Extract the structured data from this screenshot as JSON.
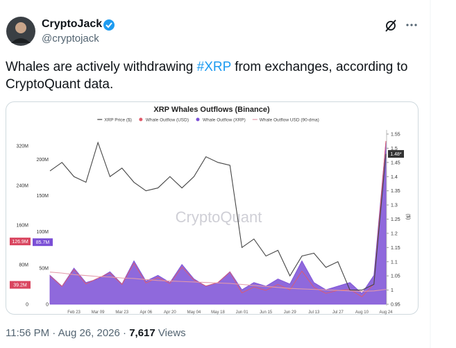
{
  "post": {
    "author": "CryptoJack",
    "handle": "@cryptojack",
    "text_before": "Whales are actively withdrawing ",
    "hashtag": "#XRP",
    "text_after": " from exchanges, according to CryptoQuant data.",
    "time": "11:56 PM",
    "separator": "·",
    "date": "Aug 26, 2026",
    "views": "7,617",
    "views_label": "Views"
  },
  "chart_data": {
    "type": "line",
    "title": "XRP Whales Outflows (Binance)",
    "watermark": "CryptoQuant",
    "y2_label": "($)",
    "categories": [
      null,
      null,
      "Feb 23",
      null,
      "Mar 09",
      null,
      "Mar 23",
      null,
      "Apr 06",
      null,
      "Apr 20",
      null,
      "May 04",
      null,
      "May 18",
      null,
      "Jun 01",
      null,
      "Jun 15",
      null,
      "Jun 29",
      null,
      "Jul 13",
      null,
      "Jul 27",
      null,
      "Aug 10",
      null,
      "Aug 24"
    ],
    "series": [
      {
        "name": "XRP Price ($)",
        "color": "#444444",
        "axis": "y2",
        "style": "line",
        "values": [
          1.42,
          1.45,
          1.4,
          1.38,
          1.52,
          1.4,
          1.43,
          1.38,
          1.35,
          1.36,
          1.4,
          1.36,
          1.4,
          1.47,
          1.45,
          1.44,
          1.15,
          1.18,
          1.12,
          1.14,
          1.05,
          1.12,
          1.13,
          1.08,
          1.1,
          1.0,
          1.0,
          1.02,
          1.48
        ]
      },
      {
        "name": "Whale Outflow (USD)",
        "color": "#e05a6a",
        "axis": "y",
        "style": "dot-line",
        "values": [
          57,
          36,
          70,
          41,
          53,
          63,
          40,
          83,
          43,
          54,
          42,
          75,
          49,
          37,
          44,
          65,
          23,
          35,
          28,
          40,
          29,
          67,
          34,
          22,
          28,
          30,
          15,
          41,
          330
        ]
      },
      {
        "name": "Whale Outflow (XRP)",
        "color": "#7b4fd6",
        "axis": "y3",
        "style": "area",
        "values": [
          40,
          25,
          50,
          30,
          35,
          45,
          28,
          60,
          32,
          40,
          30,
          55,
          35,
          25,
          30,
          45,
          20,
          30,
          25,
          35,
          28,
          60,
          30,
          20,
          25,
          30,
          15,
          40,
          225
        ]
      },
      {
        "name": "Whale Outflow USD (90-dma)",
        "color": "#e39aaa",
        "axis": "y",
        "style": "line",
        "values": [
          65,
          63,
          60,
          58,
          56,
          55,
          53,
          52,
          50,
          48,
          47,
          46,
          45,
          44,
          43,
          42,
          40,
          38,
          36,
          34,
          32,
          31,
          30,
          29,
          28,
          27,
          26,
          27,
          30
        ]
      }
    ],
    "ylim": [
      0,
      344
    ],
    "yticks": [
      0,
      {
        "value": 80,
        "label": "80M"
      },
      {
        "value": 160,
        "label": "160M"
      },
      {
        "value": 240,
        "label": "240M"
      },
      {
        "value": 320,
        "label": "320M"
      }
    ],
    "y3lim": [
      0,
      235
    ],
    "y3ticks": [
      0,
      {
        "value": 50,
        "label": "50M"
      },
      {
        "value": 100,
        "label": "100M"
      },
      {
        "value": 150,
        "label": "150M"
      },
      {
        "value": 200,
        "label": "200M"
      }
    ],
    "y2lim": [
      0.95,
      1.55
    ],
    "y2ticks": [
      0.95,
      1,
      1.05,
      1.1,
      1.15,
      1.2,
      1.25,
      1.3,
      1.35,
      1.4,
      1.45,
      1.5,
      1.55
    ],
    "annotations": [
      {
        "text": "126.9M",
        "axis": "y",
        "value": 126.9,
        "color": "#d9455f"
      },
      {
        "text": "85.7M",
        "axis": "y3",
        "value": 85.7,
        "color": "#7b4fd6"
      },
      {
        "text": "39.2M",
        "axis": "y",
        "value": 39.2,
        "color": "#d9455f"
      },
      {
        "text": "1.48*",
        "axis": "y2",
        "value": 1.48,
        "color": "#333333"
      }
    ]
  }
}
